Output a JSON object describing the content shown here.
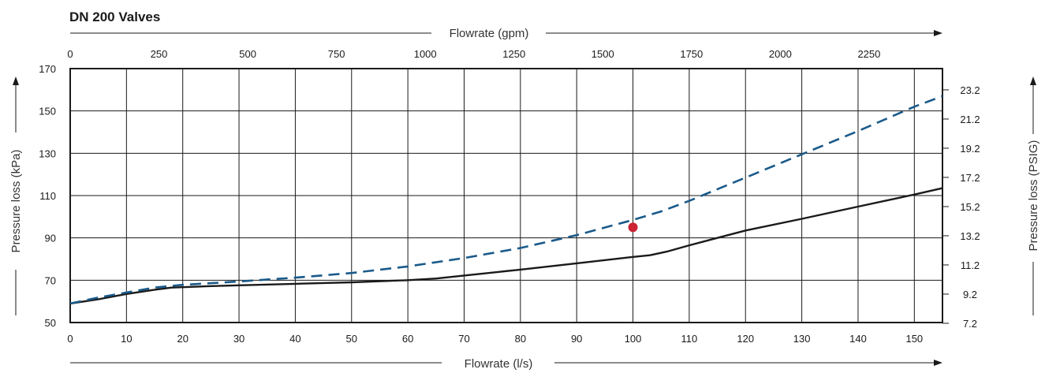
{
  "chart_data": {
    "type": "line",
    "title": "DN 200 Valves",
    "x_bottom": {
      "label": "Flowrate (l/s)",
      "range": [
        0,
        155
      ],
      "ticks": [
        0,
        10,
        20,
        30,
        40,
        50,
        60,
        70,
        80,
        90,
        100,
        110,
        120,
        130,
        140,
        150
      ]
    },
    "x_top": {
      "label": "Flowrate (gpm)",
      "ticks": [
        "0",
        "250",
        "500",
        "750",
        "1000",
        "1250",
        "1500",
        "1750",
        "2000",
        "2250"
      ]
    },
    "y_left": {
      "label": "Pressure loss (kPa)",
      "range": [
        50,
        170
      ],
      "ticks": [
        50,
        70,
        90,
        110,
        130,
        150,
        170
      ]
    },
    "y_right": {
      "label": "Pressure loss (PSIG)",
      "ticks": [
        "7.2",
        "9.2",
        "11.2",
        "13.2",
        "15.2",
        "17.2",
        "19.2",
        "21.2",
        "23.2"
      ]
    },
    "grid": true,
    "series": [
      {
        "style": "solid",
        "color": "#1a1a1a",
        "points": [
          [
            0,
            59
          ],
          [
            5,
            61
          ],
          [
            10,
            63.5
          ],
          [
            15,
            65.5
          ],
          [
            18,
            66.5
          ],
          [
            25,
            67.2
          ],
          [
            30,
            67.6
          ],
          [
            40,
            68.3
          ],
          [
            50,
            69
          ],
          [
            60,
            70
          ],
          [
            65,
            70.8
          ],
          [
            70,
            72.2
          ],
          [
            80,
            75
          ],
          [
            90,
            78
          ],
          [
            100,
            81
          ],
          [
            103,
            81.8
          ],
          [
            106,
            83.5
          ],
          [
            110,
            86.5
          ],
          [
            115,
            90
          ],
          [
            120,
            93.5
          ],
          [
            130,
            99
          ],
          [
            140,
            104.8
          ],
          [
            150,
            110.5
          ],
          [
            155,
            113.5
          ]
        ]
      },
      {
        "style": "dashed",
        "color": "#1a5a8a",
        "points": [
          [
            0,
            59
          ],
          [
            5,
            61.8
          ],
          [
            10,
            64.2
          ],
          [
            15,
            66.5
          ],
          [
            20,
            67.8
          ],
          [
            25,
            68.6
          ],
          [
            30,
            69.4
          ],
          [
            40,
            71.2
          ],
          [
            50,
            73.4
          ],
          [
            60,
            76.5
          ],
          [
            70,
            80.5
          ],
          [
            80,
            85.2
          ],
          [
            90,
            91.3
          ],
          [
            100,
            98.5
          ],
          [
            105,
            102.5
          ],
          [
            110,
            107.5
          ],
          [
            120,
            118.5
          ],
          [
            130,
            129.5
          ],
          [
            140,
            140.5
          ],
          [
            150,
            152
          ],
          [
            155,
            157
          ]
        ]
      }
    ],
    "markers": [
      {
        "x": 100,
        "y": 95,
        "color": "#cc2233"
      }
    ]
  }
}
